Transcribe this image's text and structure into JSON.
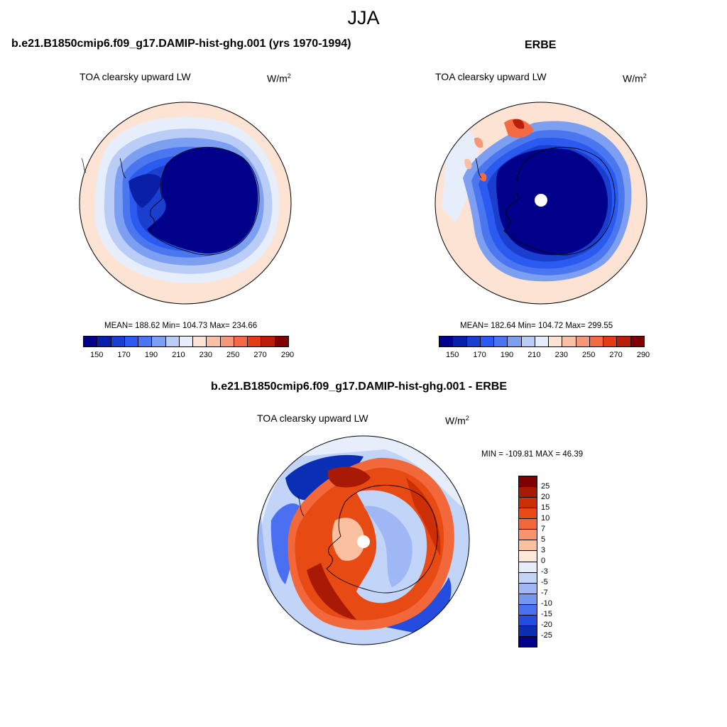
{
  "title": "JJA",
  "panels": {
    "model": {
      "case_title": "b.e21.B1850cmip6.f09_g17.DAMIP-hist-ghg.001 (yrs 1970-1994)",
      "variable": "TOA clearsky upward LW",
      "units_base": "W/m",
      "units_exp": "2",
      "stats": "MEAN= 188.62  Min= 104.73  Max= 234.66"
    },
    "obs": {
      "case_title": "ERBE",
      "variable": "TOA clearsky upward LW",
      "units_base": "W/m",
      "units_exp": "2",
      "stats": "MEAN= 182.64  Min= 104.72  Max= 299.55"
    },
    "diff": {
      "case_title": "b.e21.B1850cmip6.f09_g17.DAMIP-hist-ghg.001 - ERBE",
      "variable": "TOA clearsky upward LW",
      "units_base": "W/m",
      "units_exp": "2",
      "stats": "MIN = -109.81 MAX =  46.39"
    }
  },
  "colorbar_abs": {
    "colors": [
      "#00008b",
      "#0a1fa8",
      "#1a3fcf",
      "#2a5af0",
      "#4a76f0",
      "#7d9ff2",
      "#b9cdf7",
      "#e6eefb",
      "#fde3d3",
      "#f9c0a6",
      "#f79779",
      "#f36b45",
      "#e23e16",
      "#b81e08",
      "#7f0000"
    ],
    "labels": [
      "150",
      "170",
      "190",
      "210",
      "230",
      "250",
      "270",
      "290"
    ]
  },
  "colorbar_diff": {
    "colors": [
      "#7f0000",
      "#a81a05",
      "#cc2e05",
      "#e84a13",
      "#f2683a",
      "#f7946f",
      "#fbc0a0",
      "#fde8da",
      "#e6eefb",
      "#c2d4f8",
      "#9fb8f5",
      "#7596ef",
      "#4a6ff0",
      "#244cdf",
      "#0a2fb5",
      "#00008b"
    ],
    "labels": [
      "25",
      "20",
      "15",
      "10",
      "7",
      "5",
      "3",
      "0",
      "-3",
      "-5",
      "-7",
      "-10",
      "-15",
      "-20",
      "-25"
    ]
  }
}
